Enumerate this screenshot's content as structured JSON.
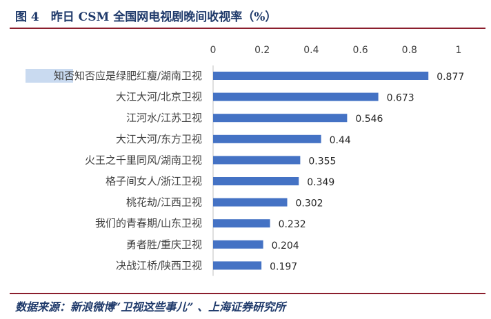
{
  "figure": {
    "title": "图 4　昨日 CSM 全国网电视剧晚间收视率（%）",
    "source": "数据来源：新浪微博“卫视这些事儿” 、上海证券研究所"
  },
  "colors": {
    "bar": "#4472c4",
    "rule": "#8b1e2d",
    "title": "#1f3a6b",
    "label_text": "#404040",
    "highlight": "#c9daf0"
  },
  "chart_data": {
    "type": "bar",
    "orientation": "horizontal",
    "categories": [
      "知否知否应是绿肥红瘦/湖南卫视",
      "大江大河/北京卫视",
      "江河水/江苏卫视",
      "大江大河/东方卫视",
      "火王之千里同风/湖南卫视",
      "格子间女人/浙江卫视",
      "桃花劫/江西卫视",
      "我们的青春期/山东卫视",
      "勇者胜/重庆卫视",
      "决战江桥/陕西卫视"
    ],
    "values": [
      0.877,
      0.673,
      0.546,
      0.44,
      0.355,
      0.349,
      0.302,
      0.232,
      0.204,
      0.197
    ],
    "value_labels": [
      "0.877",
      "0.673",
      "0.546",
      "0.44",
      "0.355",
      "0.349",
      "0.302",
      "0.232",
      "0.204",
      "0.197"
    ],
    "x_ticks": [
      "0",
      "0.2",
      "0.4",
      "0.6",
      "0.8",
      "1"
    ],
    "xlim": [
      0,
      1
    ],
    "x_axis_position": "top",
    "grid": false,
    "legend": "none"
  }
}
